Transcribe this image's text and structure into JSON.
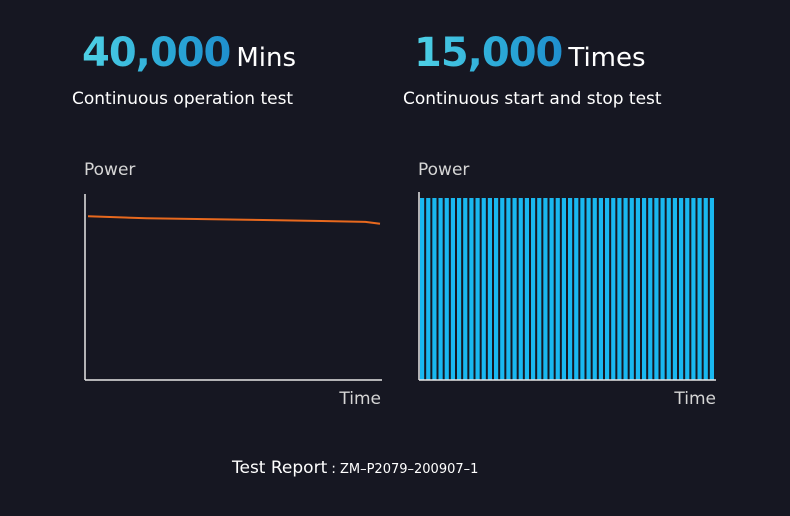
{
  "stats": [
    {
      "value": "40,000",
      "unit": "Mins",
      "caption": "Continuous operation test"
    },
    {
      "value": "15,000",
      "unit": "Times",
      "caption": "Continuous start and stop test"
    }
  ],
  "chart_data": [
    {
      "type": "line",
      "ylabel": "Power",
      "xlabel": "Time",
      "x": [
        0,
        0.2,
        0.4,
        0.6,
        0.8,
        0.95,
        1.0
      ],
      "series": [
        {
          "values": [
            0.88,
            0.87,
            0.865,
            0.86,
            0.855,
            0.85,
            0.84
          ]
        }
      ],
      "xlim": [
        0,
        1
      ],
      "ylim": [
        0,
        1
      ],
      "color": "#e8691e",
      "grid": false
    },
    {
      "type": "bar",
      "ylabel": "Power",
      "xlabel": "Time",
      "description_values": "on/off cycles; each bar = on period at full power",
      "values": [
        1,
        1,
        1,
        1,
        1,
        1,
        1,
        1,
        1,
        1,
        1,
        1,
        1,
        1,
        1,
        1,
        1,
        1,
        1,
        1,
        1,
        1,
        1,
        1,
        1,
        1,
        1,
        1,
        1,
        1,
        1,
        1,
        1,
        1,
        1,
        1,
        1,
        1,
        1,
        1,
        1,
        1,
        1,
        1,
        1,
        1,
        1,
        1
      ],
      "ylim": [
        0,
        1
      ],
      "color": "#19b8f0",
      "grid": false
    }
  ],
  "footer": {
    "label": "Test Report",
    "separator": ":",
    "code": "ZM–P2079–200907–1"
  }
}
